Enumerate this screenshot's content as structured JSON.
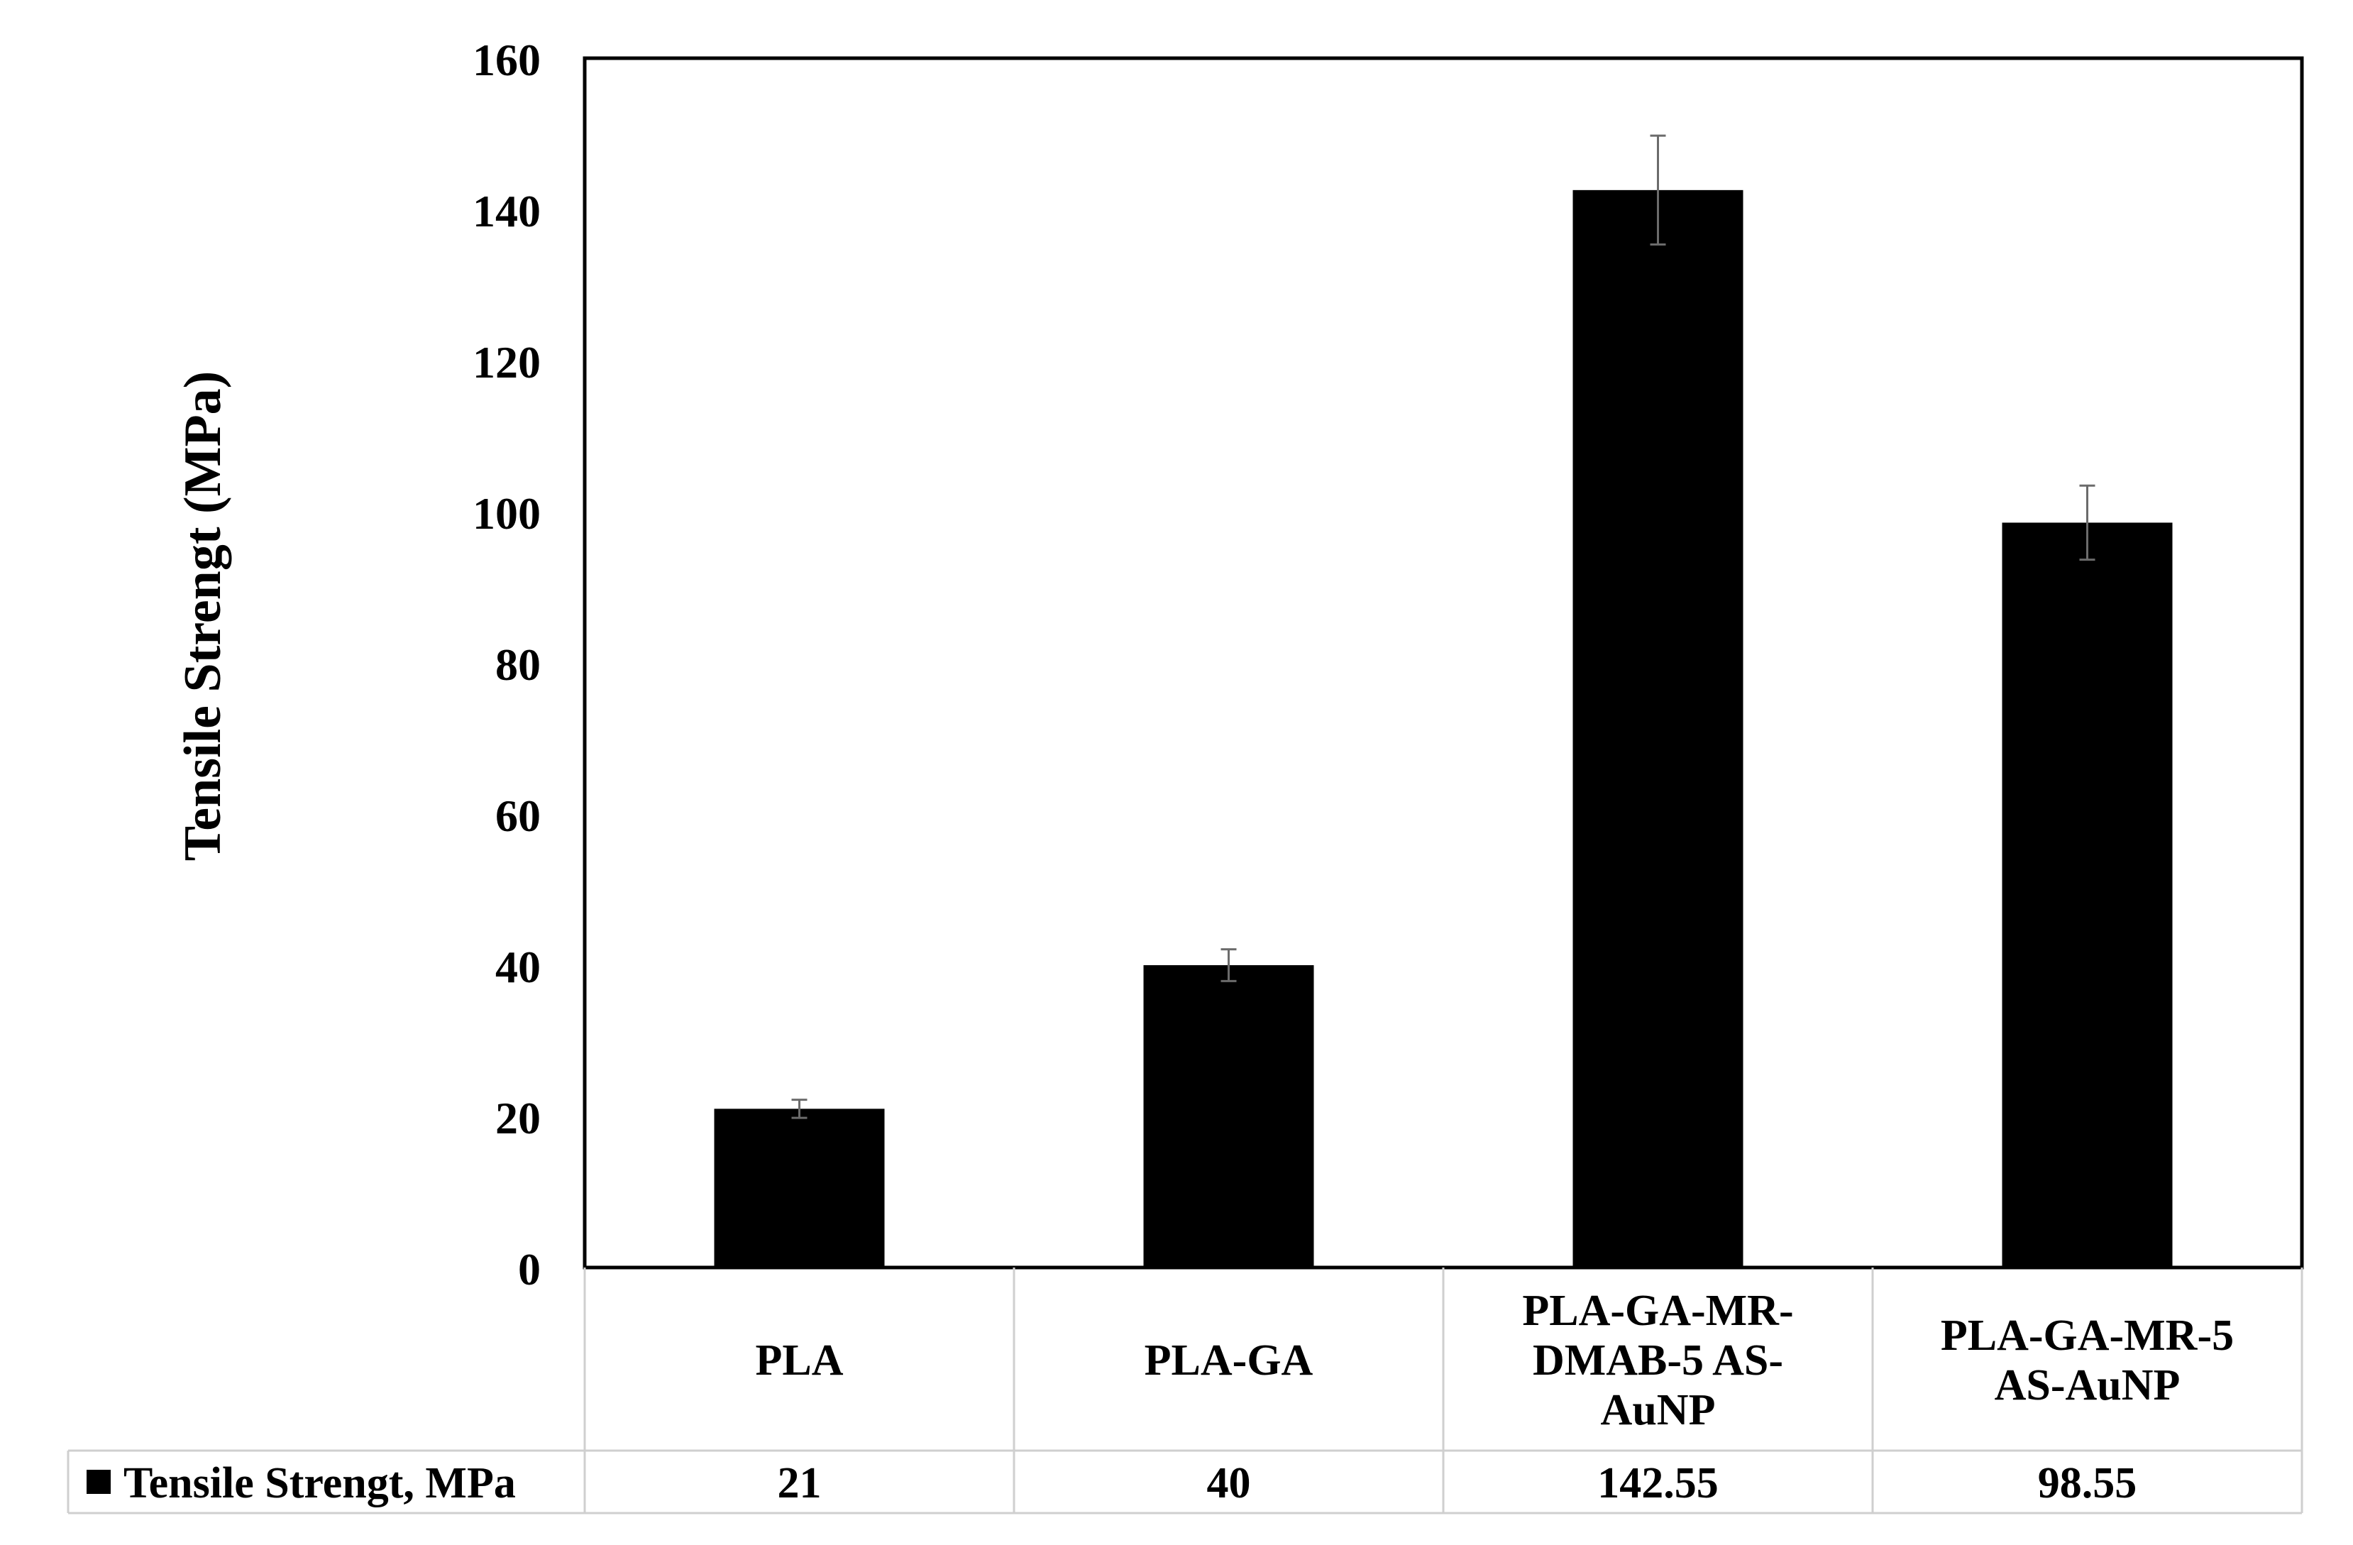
{
  "chart_data": {
    "type": "bar",
    "ylabel": "Tensile Strengt (MPa)",
    "ylim": [
      0,
      160
    ],
    "yticks": [
      0,
      20,
      40,
      60,
      80,
      100,
      120,
      140,
      160
    ],
    "grid": false,
    "categories": [
      [
        "PLA"
      ],
      [
        "PLA-GA"
      ],
      [
        "PLA-GA-MR-",
        "DMAB-5 AS-",
        "AuNP"
      ],
      [
        "PLA-GA-MR-5",
        "AS-AuNP"
      ]
    ],
    "series": [
      {
        "name": "Tensile Strengt, MPa",
        "color": "#000000",
        "values": [
          21,
          40,
          142.55,
          98.55
        ],
        "value_labels": [
          "21",
          "40",
          "142.55",
          "98.55"
        ],
        "errors": [
          1.2,
          2.1,
          7.2,
          4.9
        ]
      }
    ],
    "legend": "data-table"
  }
}
